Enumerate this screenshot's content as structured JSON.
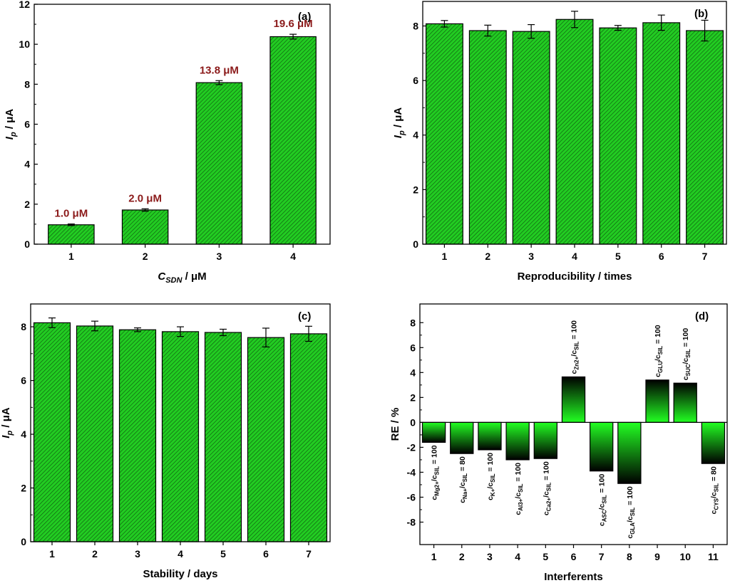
{
  "colors": {
    "bar_fill": "#22cc22",
    "bar_hatch": "#0f5a0f",
    "data_label": "#8b1a1a",
    "frame": "#000000"
  },
  "chart_data": [
    {
      "id": "a",
      "type": "bar",
      "panel_label": "(a)",
      "categories": [
        "1",
        "2",
        "3",
        "4"
      ],
      "values": [
        0.97,
        1.71,
        8.08,
        10.38
      ],
      "errors": [
        0.04,
        0.06,
        0.1,
        0.12
      ],
      "data_labels": [
        "1.0 μM",
        "2.0 μM",
        "13.8 μM",
        "19.6 μM"
      ],
      "ylabel_main": "I",
      "ylabel_sub": "p",
      "ylabel_unit": " / μA",
      "xlabel_main": "C",
      "xlabel_sub": "SDN",
      "xlabel_unit": " / μM",
      "ylim": [
        0,
        12
      ],
      "yticks": [
        0,
        2,
        4,
        6,
        8,
        10,
        12
      ],
      "grid": false,
      "fill": "hatched"
    },
    {
      "id": "b",
      "type": "bar",
      "panel_label": "(b)",
      "categories": [
        "1",
        "2",
        "3",
        "4",
        "5",
        "6",
        "7"
      ],
      "values": [
        8.08,
        7.83,
        7.8,
        8.24,
        7.93,
        8.12,
        7.83
      ],
      "errors": [
        0.12,
        0.2,
        0.25,
        0.3,
        0.09,
        0.28,
        0.38
      ],
      "ylabel_main": "I",
      "ylabel_sub": "p",
      "ylabel_unit": " / μA",
      "xlabel": "Reproducibility / times",
      "ylim": [
        0,
        8.9
      ],
      "yticks": [
        0,
        2,
        4,
        6,
        8
      ],
      "grid": false,
      "fill": "hatched"
    },
    {
      "id": "c",
      "type": "bar",
      "panel_label": "(c)",
      "categories": [
        "1",
        "2",
        "3",
        "4",
        "5",
        "6",
        "7"
      ],
      "values": [
        8.15,
        8.03,
        7.89,
        7.82,
        7.79,
        7.6,
        7.74
      ],
      "errors": [
        0.18,
        0.18,
        0.07,
        0.18,
        0.12,
        0.35,
        0.28
      ],
      "ylabel_main": "I",
      "ylabel_sub": "p",
      "ylabel_unit": " / μA",
      "xlabel": "Stability / days",
      "ylim": [
        0,
        8.85
      ],
      "yticks": [
        0,
        2,
        4,
        6,
        8
      ],
      "grid": false,
      "fill": "hatched"
    },
    {
      "id": "d",
      "type": "bar",
      "panel_label": "(d)",
      "categories": [
        "1",
        "2",
        "3",
        "4",
        "5",
        "6",
        "7",
        "8",
        "9",
        "10",
        "11"
      ],
      "values": [
        -1.6,
        -2.5,
        -2.2,
        -3.0,
        -2.9,
        3.65,
        -3.9,
        -4.9,
        3.4,
        3.15,
        -3.3
      ],
      "bar_labels": [
        {
          "base": "c",
          "ion": "Mg2+",
          "ratio": " = 100"
        },
        {
          "base": "c",
          "ion": "Na+",
          "ratio": " = 80"
        },
        {
          "base": "c",
          "ion": "K+",
          "ratio": " = 100"
        },
        {
          "base": "c",
          "ion": "Al3+",
          "ratio": " = 100"
        },
        {
          "base": "c",
          "ion": "Ca2+",
          "ratio": " = 100"
        },
        {
          "base": "c",
          "ion": "Zn2+",
          "ratio": " = 100"
        },
        {
          "base": "c",
          "ion": "ASC",
          "ratio": " = 100"
        },
        {
          "base": "c",
          "ion": "GLA",
          "ratio": " = 100"
        },
        {
          "base": "c",
          "ion": "GLU",
          "ratio": " = 100"
        },
        {
          "base": "c",
          "ion": "SUC",
          "ratio": " = 100"
        },
        {
          "base": "c",
          "ion": "CYS",
          "ratio": " = 80"
        }
      ],
      "label_divisor": "/c",
      "label_divisor_sub": "SIL",
      "ylabel": "RE / %",
      "xlabel": "Interferents",
      "ylim": [
        -9.8,
        9.5
      ],
      "yticks": [
        -8,
        -6,
        -4,
        -2,
        0,
        2,
        4,
        6,
        8
      ],
      "grid": false,
      "fill": "gradient"
    }
  ]
}
